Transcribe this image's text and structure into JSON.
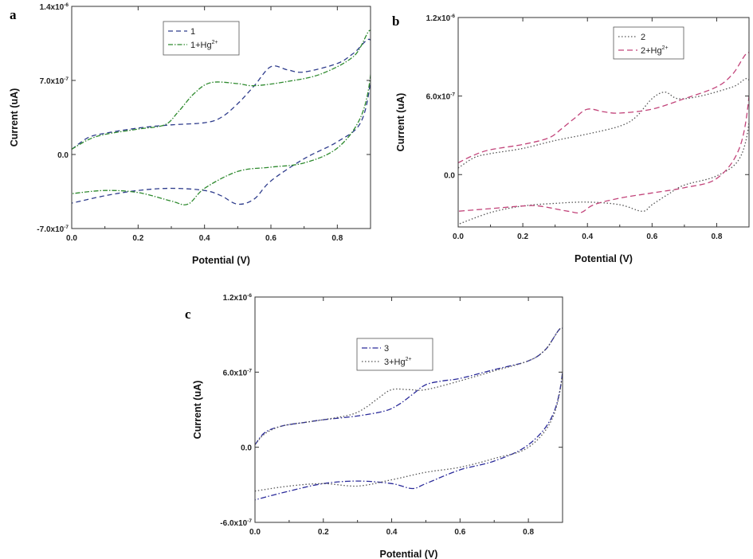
{
  "chart_data": [
    {
      "type": "line",
      "panel": "a",
      "xlabel": "Potential (V)",
      "ylabel": "Current (uA)",
      "xlim": [
        0,
        0.9
      ],
      "ylim": [
        -7e-07,
        1.4e-06
      ],
      "xticks": [
        {
          "value": 0.0,
          "label": "0.0"
        },
        {
          "value": 0.2,
          "label": "0.2"
        },
        {
          "value": 0.4,
          "label": "0.4"
        },
        {
          "value": 0.6,
          "label": "0.6"
        },
        {
          "value": 0.8,
          "label": "0.8"
        }
      ],
      "yticks": [
        {
          "value": -7e-07,
          "mant": "-7.0x10",
          "exp": "-7"
        },
        {
          "value": 0.0,
          "mant": "0.0",
          "exp": ""
        },
        {
          "value": 7e-07,
          "mant": "7.0x10",
          "exp": "-7"
        },
        {
          "value": 1.4e-06,
          "mant": "1.4x10",
          "exp": "-6"
        }
      ],
      "legend_position": "top-center",
      "series": [
        {
          "name": "1",
          "name_sup": "",
          "color": "#2e3c8c",
          "dash": "6,4",
          "forward": [
            [
              0,
              5e-08
            ],
            [
              0.05,
              1.6e-07
            ],
            [
              0.1,
              2e-07
            ],
            [
              0.2,
              2.5e-07
            ],
            [
              0.3,
              2.8e-07
            ],
            [
              0.4,
              3e-07
            ],
            [
              0.45,
              3.5e-07
            ],
            [
              0.5,
              4.8e-07
            ],
            [
              0.55,
              6.5e-07
            ],
            [
              0.6,
              8.3e-07
            ],
            [
              0.65,
              8e-07
            ],
            [
              0.7,
              7.8e-07
            ],
            [
              0.8,
              8.6e-07
            ],
            [
              0.85,
              9.6e-07
            ],
            [
              0.9,
              1.08e-06
            ]
          ],
          "reverse": [
            [
              0.9,
              7e-07
            ],
            [
              0.87,
              3e-07
            ],
            [
              0.8,
              1.2e-07
            ],
            [
              0.7,
              -4e-08
            ],
            [
              0.6,
              -2.5e-07
            ],
            [
              0.55,
              -4.2e-07
            ],
            [
              0.5,
              -4.7e-07
            ],
            [
              0.45,
              -3.9e-07
            ],
            [
              0.4,
              -3.4e-07
            ],
            [
              0.3,
              -3.2e-07
            ],
            [
              0.2,
              -3.4e-07
            ],
            [
              0.1,
              -3.9e-07
            ],
            [
              0,
              -4.6e-07
            ]
          ]
        },
        {
          "name": "1+Hg",
          "name_sup": "2+",
          "color": "#2e8a2e",
          "dash": "6,2,1.5,2",
          "forward": [
            [
              0,
              5e-08
            ],
            [
              0.05,
              1.4e-07
            ],
            [
              0.1,
              1.9e-07
            ],
            [
              0.2,
              2.4e-07
            ],
            [
              0.28,
              2.8e-07
            ],
            [
              0.32,
              4e-07
            ],
            [
              0.37,
              5.8e-07
            ],
            [
              0.42,
              6.8e-07
            ],
            [
              0.5,
              6.7e-07
            ],
            [
              0.55,
              6.5e-07
            ],
            [
              0.65,
              6.9e-07
            ],
            [
              0.75,
              7.6e-07
            ],
            [
              0.85,
              9.3e-07
            ],
            [
              0.9,
              1.17e-06
            ]
          ],
          "reverse": [
            [
              0.9,
              7.5e-07
            ],
            [
              0.87,
              3.5e-07
            ],
            [
              0.8,
              6e-08
            ],
            [
              0.7,
              -8e-08
            ],
            [
              0.6,
              -1.2e-07
            ],
            [
              0.5,
              -1.6e-07
            ],
            [
              0.4,
              -3.2e-07
            ],
            [
              0.35,
              -4.7e-07
            ],
            [
              0.3,
              -4.4e-07
            ],
            [
              0.2,
              -3.6e-07
            ],
            [
              0.1,
              -3.4e-07
            ],
            [
              0,
              -3.7e-07
            ]
          ]
        }
      ]
    },
    {
      "type": "line",
      "panel": "b",
      "xlabel": "Potential (V)",
      "ylabel": "Current (uA)",
      "xlim": [
        0,
        0.9
      ],
      "ylim": [
        -4e-07,
        1.2e-06
      ],
      "xticks": [
        {
          "value": 0.0,
          "label": "0.0"
        },
        {
          "value": 0.2,
          "label": "0.2"
        },
        {
          "value": 0.4,
          "label": "0.4"
        },
        {
          "value": 0.6,
          "label": "0.6"
        },
        {
          "value": 0.8,
          "label": "0.8"
        }
      ],
      "yticks": [
        {
          "value": 0.0,
          "mant": "0.0",
          "exp": ""
        },
        {
          "value": 6e-07,
          "mant": "6.0x10",
          "exp": "-7"
        },
        {
          "value": 1.2e-06,
          "mant": "1.2x10",
          "exp": "-6"
        }
      ],
      "legend_position": "top-center",
      "series": [
        {
          "name": "2",
          "name_sup": "",
          "color": "#555555",
          "dash": "1.5,2.5",
          "forward": [
            [
              0,
              5e-08
            ],
            [
              0.05,
              1.3e-07
            ],
            [
              0.1,
              1.6e-07
            ],
            [
              0.2,
              2e-07
            ],
            [
              0.3,
              2.6e-07
            ],
            [
              0.4,
              3.1e-07
            ],
            [
              0.5,
              3.7e-07
            ],
            [
              0.55,
              4.4e-07
            ],
            [
              0.6,
              5.8e-07
            ],
            [
              0.64,
              6.3e-07
            ],
            [
              0.68,
              5.8e-07
            ],
            [
              0.75,
              6e-07
            ],
            [
              0.85,
              6.7e-07
            ],
            [
              0.9,
              7.2e-07
            ]
          ],
          "reverse": [
            [
              0.9,
              4e-07
            ],
            [
              0.87,
              1.2e-07
            ],
            [
              0.8,
              -1e-08
            ],
            [
              0.7,
              -8e-08
            ],
            [
              0.65,
              -1.5e-07
            ],
            [
              0.6,
              -2.3e-07
            ],
            [
              0.57,
              -2.8e-07
            ],
            [
              0.5,
              -2.3e-07
            ],
            [
              0.4,
              -2.1e-07
            ],
            [
              0.3,
              -2.2e-07
            ],
            [
              0.2,
              -2.4e-07
            ],
            [
              0.1,
              -2.9e-07
            ],
            [
              0,
              -3.8e-07
            ]
          ]
        },
        {
          "name": "2+Hg",
          "name_sup": "2+",
          "color": "#c2447a",
          "dash": "7,4",
          "forward": [
            [
              0,
              9e-08
            ],
            [
              0.05,
              1.5e-07
            ],
            [
              0.1,
              1.9e-07
            ],
            [
              0.2,
              2.3e-07
            ],
            [
              0.28,
              2.8e-07
            ],
            [
              0.32,
              3.5e-07
            ],
            [
              0.36,
              4.3e-07
            ],
            [
              0.4,
              5e-07
            ],
            [
              0.45,
              4.8e-07
            ],
            [
              0.5,
              4.7e-07
            ],
            [
              0.6,
              5e-07
            ],
            [
              0.7,
              5.8e-07
            ],
            [
              0.8,
              6.7e-07
            ],
            [
              0.85,
              7.7e-07
            ],
            [
              0.9,
              9.3e-07
            ]
          ],
          "reverse": [
            [
              0.9,
              6e-07
            ],
            [
              0.87,
              2e-07
            ],
            [
              0.8,
              -3e-08
            ],
            [
              0.7,
              -1e-07
            ],
            [
              0.6,
              -1.4e-07
            ],
            [
              0.5,
              -1.8e-07
            ],
            [
              0.42,
              -2.3e-07
            ],
            [
              0.38,
              -2.9e-07
            ],
            [
              0.34,
              -2.8e-07
            ],
            [
              0.25,
              -2.4e-07
            ],
            [
              0.2,
              -2.4e-07
            ],
            [
              0.1,
              -2.6e-07
            ],
            [
              0,
              -2.8e-07
            ]
          ]
        }
      ]
    },
    {
      "type": "line",
      "panel": "c",
      "xlabel": "Potential (V)",
      "ylabel": "Current (uA)",
      "xlim": [
        0,
        0.9
      ],
      "ylim": [
        -6e-07,
        1.2e-06
      ],
      "xticks": [
        {
          "value": 0.0,
          "label": "0.0"
        },
        {
          "value": 0.2,
          "label": "0.2"
        },
        {
          "value": 0.4,
          "label": "0.4"
        },
        {
          "value": 0.6,
          "label": "0.6"
        },
        {
          "value": 0.8,
          "label": "0.8"
        }
      ],
      "yticks": [
        {
          "value": -6e-07,
          "mant": "-6.0x10",
          "exp": "-7"
        },
        {
          "value": 0.0,
          "mant": "0.0",
          "exp": ""
        },
        {
          "value": 6e-07,
          "mant": "6.0x10",
          "exp": "-7"
        },
        {
          "value": 1.2e-06,
          "mant": "1.2x10",
          "exp": "-6"
        }
      ],
      "legend_position": "top-center",
      "series": [
        {
          "name": "3",
          "name_sup": "",
          "color": "#2a2a9a",
          "dash": "7,2.5,1.5,2.5",
          "forward": [
            [
              0,
              2e-08
            ],
            [
              0.03,
              1.2e-07
            ],
            [
              0.08,
              1.7e-07
            ],
            [
              0.15,
              2e-07
            ],
            [
              0.2,
              2.2e-07
            ],
            [
              0.3,
              2.5e-07
            ],
            [
              0.38,
              2.9e-07
            ],
            [
              0.42,
              3.4e-07
            ],
            [
              0.46,
              4.2e-07
            ],
            [
              0.5,
              5e-07
            ],
            [
              0.55,
              5.3e-07
            ],
            [
              0.6,
              5.5e-07
            ],
            [
              0.7,
              6.2e-07
            ],
            [
              0.8,
              6.9e-07
            ],
            [
              0.85,
              7.8e-07
            ],
            [
              0.9,
              9.5e-07
            ]
          ],
          "reverse": [
            [
              0.9,
              6e-07
            ],
            [
              0.87,
              2.5e-07
            ],
            [
              0.8,
              2e-08
            ],
            [
              0.7,
              -1.1e-07
            ],
            [
              0.6,
              -1.8e-07
            ],
            [
              0.5,
              -2.9e-07
            ],
            [
              0.46,
              -3.3e-07
            ],
            [
              0.4,
              -2.9e-07
            ],
            [
              0.3,
              -2.7e-07
            ],
            [
              0.2,
              -2.9e-07
            ],
            [
              0.1,
              -3.5e-07
            ],
            [
              0,
              -4.2e-07
            ]
          ]
        },
        {
          "name": "3+Hg",
          "name_sup": "2+",
          "color": "#555555",
          "dash": "1.5,2.5",
          "forward": [
            [
              0,
              2e-08
            ],
            [
              0.03,
              1.1e-07
            ],
            [
              0.08,
              1.7e-07
            ],
            [
              0.15,
              2e-07
            ],
            [
              0.2,
              2.2e-07
            ],
            [
              0.28,
              2.6e-07
            ],
            [
              0.32,
              3.1e-07
            ],
            [
              0.36,
              3.9e-07
            ],
            [
              0.4,
              4.6e-07
            ],
            [
              0.45,
              4.6e-07
            ],
            [
              0.5,
              4.6e-07
            ],
            [
              0.6,
              5.3e-07
            ],
            [
              0.7,
              6.1e-07
            ],
            [
              0.8,
              6.9e-07
            ],
            [
              0.85,
              7.8e-07
            ],
            [
              0.9,
              9.5e-07
            ]
          ],
          "reverse": [
            [
              0.9,
              6e-07
            ],
            [
              0.87,
              2.3e-07
            ],
            [
              0.8,
              0.0
            ],
            [
              0.7,
              -9e-08
            ],
            [
              0.6,
              -1.6e-07
            ],
            [
              0.5,
              -2e-07
            ],
            [
              0.4,
              -2.6e-07
            ],
            [
              0.3,
              -3.1e-07
            ],
            [
              0.2,
              -2.9e-07
            ],
            [
              0.1,
              -3.1e-07
            ],
            [
              0,
              -3.5e-07
            ]
          ]
        }
      ]
    }
  ]
}
